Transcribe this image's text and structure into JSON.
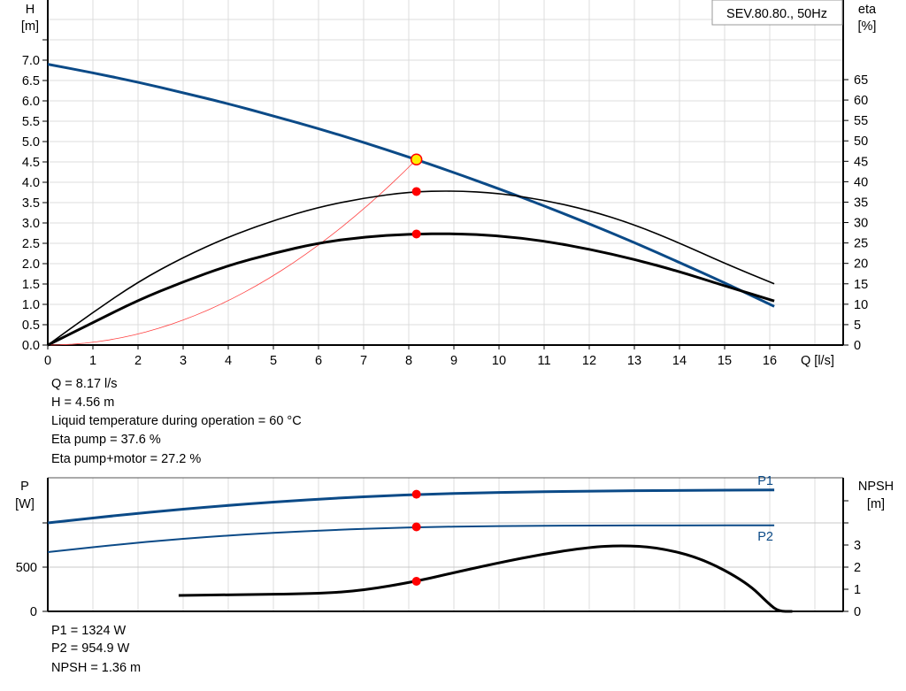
{
  "chart_data": [
    {
      "type": "line",
      "title": "SEV.80.80., 50Hz",
      "xlabel": "Q [l/s]",
      "ylabel": "H\n[m]",
      "y2label": "eta\n[%]",
      "xlim": [
        0,
        17.6
      ],
      "ylim": [
        0,
        8.5
      ],
      "y2lim": [
        0,
        84.5
      ],
      "xticks": [
        "0",
        "1",
        "2",
        "3",
        "4",
        "5",
        "6",
        "7",
        "8",
        "9",
        "10",
        "11",
        "12",
        "13",
        "14",
        "15",
        "16"
      ],
      "yticks": [
        "0.0",
        "0.5",
        "1.0",
        "1.5",
        "2.0",
        "2.5",
        "3.0",
        "3.5",
        "4.0",
        "4.5",
        "5.0",
        "5.5",
        "6.0",
        "6.5",
        "7.0"
      ],
      "y2ticks": [
        "0",
        "5",
        "10",
        "15",
        "20",
        "25",
        "30",
        "35",
        "40",
        "45",
        "50",
        "55",
        "60",
        "65"
      ],
      "grid": true,
      "x": [
        0,
        1,
        2,
        3,
        4,
        5,
        6,
        7,
        8,
        9,
        10,
        11,
        12,
        13,
        14,
        15,
        16.1
      ],
      "series": [
        {
          "key": "H",
          "axis": "left",
          "color": "#0b4a87",
          "values": [
            6.9,
            6.69,
            6.46,
            6.2,
            5.93,
            5.63,
            5.32,
            4.98,
            4.62,
            4.24,
            3.84,
            3.42,
            2.98,
            2.52,
            2.03,
            1.53,
            0.95
          ]
        },
        {
          "key": "eta_pump",
          "axis": "right",
          "color": "#000000",
          "values": [
            0,
            8,
            15.5,
            21.5,
            26.5,
            30.5,
            33.8,
            36,
            37.5,
            37.8,
            37.2,
            35.5,
            33,
            29.5,
            25,
            20,
            15
          ]
        },
        {
          "key": "eta_total",
          "axis": "right",
          "color": "#000000",
          "values": [
            0,
            5.5,
            11,
            15.5,
            19.5,
            22.5,
            25,
            26.5,
            27.2,
            27.3,
            26.8,
            25.5,
            23.5,
            21,
            18,
            14.5,
            10.8
          ]
        }
      ],
      "system_curve": {
        "color": "#ff4040",
        "q_end": 8.17,
        "h_end": 4.56
      },
      "operating_point": {
        "Q": 8.17,
        "H": 4.56,
        "eta_pump": 37.6,
        "eta_total": 27.2
      }
    },
    {
      "type": "line",
      "ylabel": "P\n[W]",
      "y2label": "NPSH\n[m]",
      "xlim": [
        0,
        17.6
      ],
      "ylim": [
        0,
        1500
      ],
      "y2lim": [
        0,
        6
      ],
      "yticks": [
        "0",
        "500"
      ],
      "y2ticks": [
        "0",
        "1",
        "2",
        "3"
      ],
      "grid": true,
      "series": [
        {
          "name": "P1",
          "axis": "left",
          "color": "#0b4a87",
          "x": [
            0,
            2,
            4,
            6,
            8,
            10,
            12,
            14,
            16.1
          ],
          "values": [
            1000,
            1110,
            1200,
            1270,
            1320,
            1345,
            1360,
            1368,
            1372
          ]
        },
        {
          "name": "P2",
          "axis": "left",
          "color": "#0b4a87",
          "x": [
            0,
            2,
            4,
            6,
            8,
            10,
            12,
            14,
            16.1
          ],
          "values": [
            670,
            780,
            860,
            915,
            950,
            965,
            970,
            972,
            972
          ]
        },
        {
          "key": "NPSH",
          "axis": "right",
          "color": "#000000",
          "x": [
            2.9,
            4,
            6,
            7,
            8.17,
            9,
            10,
            11,
            12,
            12.7,
            13.5,
            14.5,
            15.5,
            16,
            16.2,
            16.5
          ],
          "values": [
            0.72,
            0.75,
            0.8,
            0.95,
            1.36,
            1.75,
            2.2,
            2.6,
            2.9,
            2.98,
            2.9,
            2.4,
            1.3,
            0.3,
            0,
            0
          ]
        }
      ],
      "operating_point": {
        "Q": 8.17,
        "P1": 1324,
        "P2": 954.9,
        "NPSH": 1.36
      }
    }
  ],
  "info": {
    "q": "Q = 8.17 l/s",
    "h": "H = 4.56 m",
    "temp": "Liquid temperature during operation = 60 °C",
    "eta_pump": "Eta pump = 37.6 %",
    "eta_total": "Eta pump+motor = 27.2 %",
    "p1": "P1 = 1324 W",
    "p2": "P2 = 954.9 W",
    "npsh": "NPSH = 1.36 m"
  }
}
